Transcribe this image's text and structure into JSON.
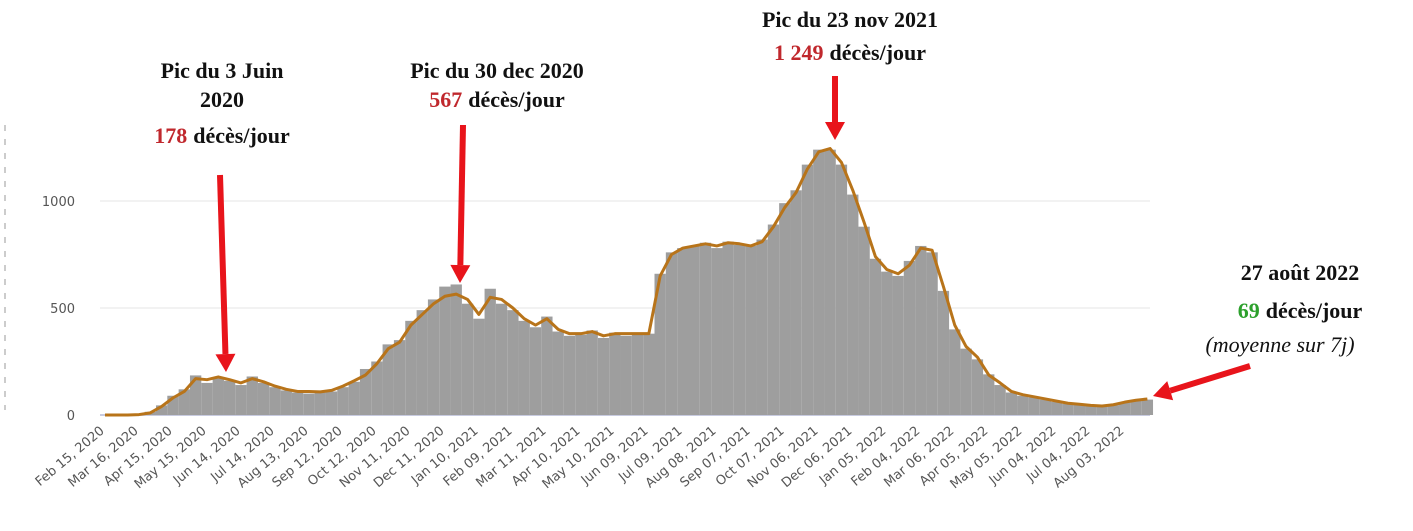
{
  "chart_data": {
    "type": "bar",
    "categories": [
      "Feb 15, 2020",
      null,
      null,
      "Mar 16, 2020",
      null,
      null,
      "Apr 15, 2020",
      null,
      null,
      "May 15, 2020",
      null,
      null,
      "Jun 14, 2020",
      null,
      null,
      "Jul 14, 2020",
      null,
      null,
      "Aug 13, 2020",
      null,
      null,
      "Sep 12, 2020",
      null,
      null,
      "Oct 12, 2020",
      null,
      null,
      "Nov 11, 2020",
      null,
      null,
      "Dec 11, 2020",
      null,
      null,
      "Jan 10, 2021",
      null,
      null,
      "Feb 09, 2021",
      null,
      null,
      "Mar 11, 2021",
      null,
      null,
      "Apr 10, 2021",
      null,
      null,
      "May 10, 2021",
      null,
      null,
      "Jun 09, 2021",
      null,
      null,
      "Jul 09, 2021",
      null,
      null,
      "Aug 08, 2021",
      null,
      null,
      "Sep 07, 2021",
      null,
      null,
      "Oct 07, 2021",
      null,
      null,
      "Nov 06, 2021",
      null,
      null,
      "Dec 06, 2021",
      null,
      null,
      "Jan 05, 2022",
      null,
      null,
      "Feb 04, 2022",
      null,
      null,
      "Mar 06, 2022",
      null,
      null,
      "Apr 05, 2022",
      null,
      null,
      "May 05, 2022",
      null,
      null,
      "Jun 04, 2022",
      null,
      null,
      "Jul 04, 2022",
      null,
      null,
      "Aug 03, 2022",
      null,
      null
    ],
    "series": [
      {
        "color": "#9e9e9e",
        "values": [
          0,
          0,
          0,
          2,
          15,
          45,
          90,
          120,
          185,
          150,
          175,
          160,
          140,
          180,
          150,
          130,
          115,
          105,
          100,
          105,
          110,
          130,
          155,
          215,
          250,
          330,
          350,
          440,
          490,
          540,
          600,
          610,
          520,
          450,
          590,
          520,
          490,
          440,
          410,
          460,
          390,
          370,
          375,
          395,
          360,
          385,
          370,
          385,
          380,
          660,
          760,
          780,
          790,
          805,
          780,
          810,
          795,
          790,
          820,
          890,
          990,
          1050,
          1170,
          1240,
          1240,
          1170,
          1030,
          880,
          730,
          670,
          650,
          720,
          790,
          760,
          580,
          400,
          310,
          260,
          190,
          140,
          105,
          90,
          82,
          72,
          62,
          52,
          48,
          43,
          40,
          46,
          58,
          66,
          72
        ]
      },
      {
        "color": "#b8741a",
        "type": "line",
        "values": [
          0,
          0,
          0,
          2,
          10,
          40,
          80,
          110,
          170,
          165,
          178,
          165,
          150,
          170,
          155,
          135,
          120,
          110,
          110,
          108,
          115,
          135,
          160,
          187,
          240,
          310,
          340,
          420,
          470,
          520,
          555,
          565,
          540,
          470,
          550,
          540,
          500,
          450,
          420,
          450,
          400,
          380,
          380,
          390,
          370,
          380,
          380,
          380,
          380,
          650,
          750,
          780,
          790,
          800,
          790,
          805,
          800,
          790,
          810,
          880,
          970,
          1040,
          1150,
          1230,
          1245,
          1180,
          1050,
          900,
          740,
          680,
          660,
          700,
          780,
          770,
          600,
          420,
          320,
          270,
          187,
          150,
          110,
          95,
          85,
          75,
          65,
          55,
          50,
          45,
          42,
          48,
          60,
          69,
          75
        ]
      }
    ],
    "ylim": [
      0,
      1300
    ],
    "yticks": [
      0,
      500,
      1000
    ],
    "grid": true,
    "annotations": [
      {
        "lines": [
          "Pic du 3 Juin",
          "2020"
        ],
        "value": 178,
        "unit": "décès/jour"
      },
      {
        "lines": [
          "Pic du  30 dec  2020"
        ],
        "value": 567,
        "unit": "décès/jour"
      },
      {
        "lines": [
          "Pic du  23 nov  2021"
        ],
        "value": 1249,
        "value_label": "1 249",
        "unit": "décès/jour"
      },
      {
        "lines": [
          "27 août 2022"
        ],
        "value": 69,
        "unit": "décès/jour",
        "note": "(moyenne sur 7j)"
      }
    ]
  }
}
